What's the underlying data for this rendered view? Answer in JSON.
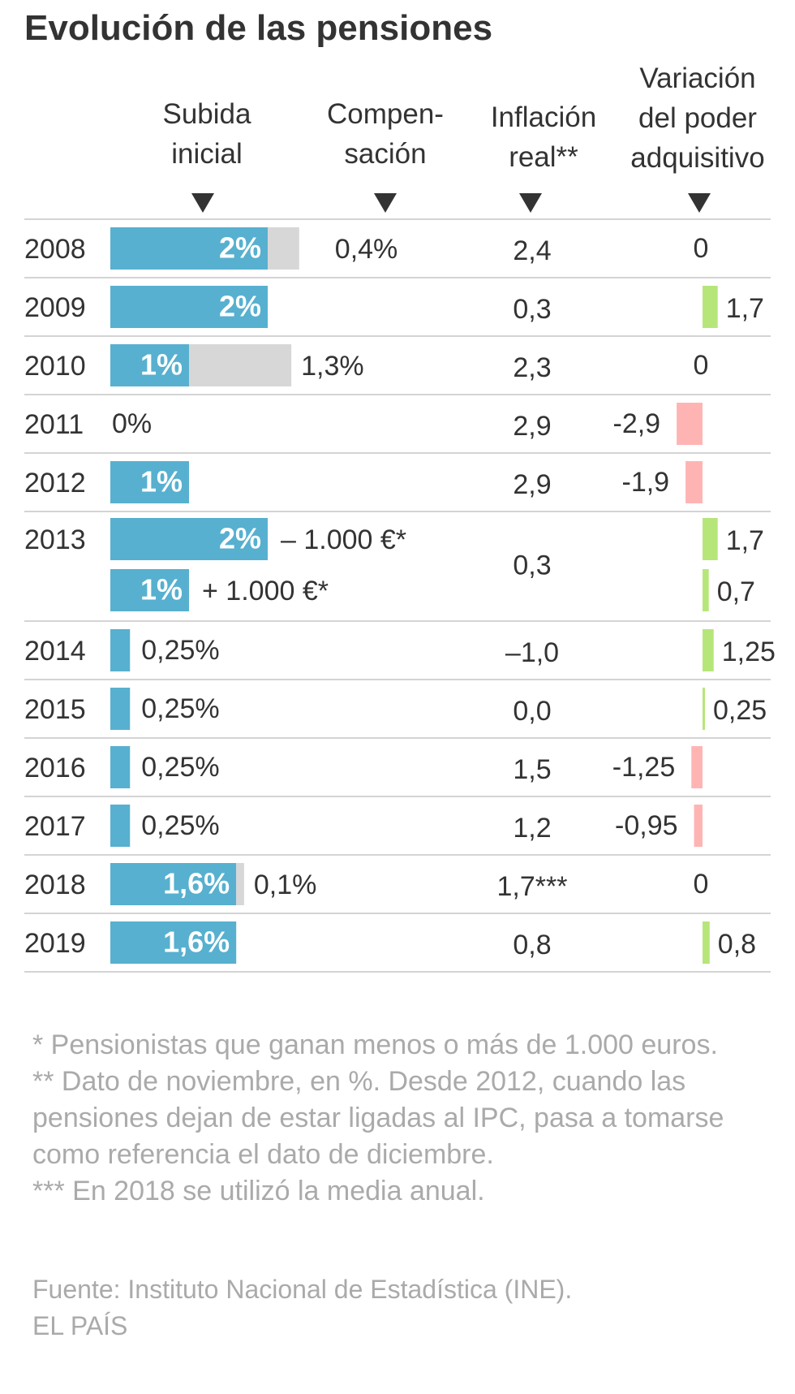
{
  "title": "Evolución de las pensiones",
  "columns": {
    "subida": "Subida\ninicial",
    "compensacion": "Compen-\nsación",
    "inflacion": "Inflación\nreal**",
    "poder": "Variación\ndel poder\nadquisitivo"
  },
  "chart_data": {
    "type": "table",
    "rows": [
      {
        "year": "2008",
        "raise": 2,
        "raise_label": "2%",
        "comp": 0.4,
        "comp_label": "0,4%",
        "inflation": "2,4",
        "power": 0,
        "power_label": "0"
      },
      {
        "year": "2009",
        "raise": 2,
        "raise_label": "2%",
        "inflation": "0,3",
        "power": 1.7,
        "power_label": "1,7"
      },
      {
        "year": "2010",
        "raise": 1,
        "raise_label": "1%",
        "comp": 1.3,
        "comp_label": "1,3%",
        "inflation": "2,3",
        "power": 0,
        "power_label": "0"
      },
      {
        "year": "2011",
        "raise": 0,
        "raise_label": "0%",
        "inflation": "2,9",
        "power": -2.9,
        "power_label": "-2,9"
      },
      {
        "year": "2012",
        "raise": 1,
        "raise_label": "1%",
        "inflation": "2,9",
        "power": -1.9,
        "power_label": "-1,9"
      },
      {
        "year": "2013",
        "inflation": "0,3",
        "subrows": [
          {
            "raise": 2,
            "raise_label": "2%",
            "note": "– 1.000 €*",
            "power": 1.7,
            "power_label": "1,7"
          },
          {
            "raise": 1,
            "raise_label": "1%",
            "note": "+ 1.000 €*",
            "power": 0.7,
            "power_label": "0,7"
          }
        ]
      },
      {
        "year": "2014",
        "raise": 0.25,
        "raise_label": "0,25%",
        "inflation": "–1,0",
        "power": 1.25,
        "power_label": "1,25"
      },
      {
        "year": "2015",
        "raise": 0.25,
        "raise_label": "0,25%",
        "inflation": "0,0",
        "power": 0.25,
        "power_label": "0,25"
      },
      {
        "year": "2016",
        "raise": 0.25,
        "raise_label": "0,25%",
        "inflation": "1,5",
        "power": -1.25,
        "power_label": "-1,25"
      },
      {
        "year": "2017",
        "raise": 0.25,
        "raise_label": "0,25%",
        "inflation": "1,2",
        "power": -0.95,
        "power_label": "-0,95"
      },
      {
        "year": "2018",
        "raise": 1.6,
        "raise_label": "1,6%",
        "comp": 0.1,
        "comp_label": "0,1%",
        "inflation": "1,7***",
        "power": 0,
        "power_label": "0"
      },
      {
        "year": "2019",
        "raise": 1.6,
        "raise_label": "1,6%",
        "inflation": "0,8",
        "power": 0.8,
        "power_label": "0,8"
      }
    ]
  },
  "colors": {
    "raise": "#57b0cf",
    "comp": "#d7d7d7",
    "positive": "#b6e67a",
    "negative": "#ffb4b4",
    "rule": "#d4d4d4",
    "text": "#333333",
    "bar_text": "#ffffff",
    "muted": "#aaaaaa"
  },
  "footnotes": [
    "* Pensionistas que ganan menos o más de 1.000 euros.",
    "** Dato de noviembre, en %. Desde 2012, cuando las pensiones dejan de estar ligadas al IPC, pasa a tomarse como referencia el dato de diciembre.",
    "*** En 2018 se utilizó la media anual."
  ],
  "source": "Fuente: Instituto Nacional de Estadística (INE).",
  "brand": "EL PAÍS"
}
